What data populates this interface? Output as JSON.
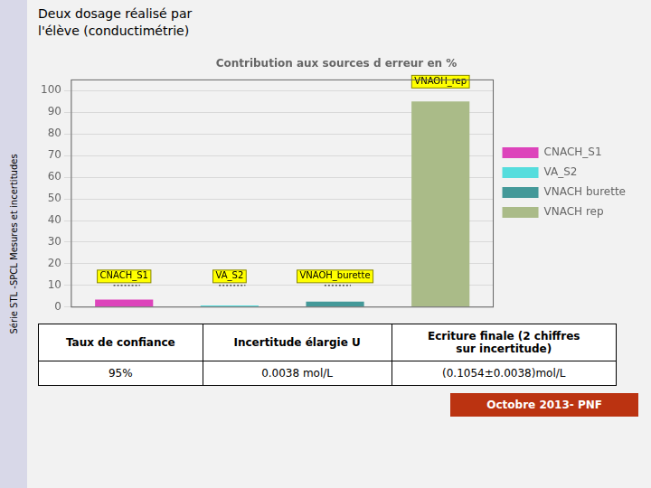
{
  "chart_data": {
    "type": "bar",
    "title": "Contribution aux sources d erreur en %",
    "categories": [
      "CNACH_S1",
      "VA_S2",
      "VNAOH_burette",
      "VNAOH_rep"
    ],
    "series": [
      {
        "name": "CNACH_S1",
        "color": "#dd44bb",
        "values": [
          3.5,
          null,
          null,
          null
        ]
      },
      {
        "name": "VA_S2",
        "color": "#55dddd",
        "values": [
          null,
          0.8,
          null,
          null
        ]
      },
      {
        "name": "VNACH burette",
        "color": "#449999",
        "values": [
          null,
          null,
          2.5,
          null
        ]
      },
      {
        "name": "VNACH rep",
        "color": "#aabb88",
        "values": [
          null,
          null,
          null,
          95.0
        ]
      }
    ],
    "ylim": [
      0,
      105
    ],
    "yticks": [
      0,
      10,
      20,
      30,
      40,
      50,
      60,
      70,
      80,
      90,
      100
    ],
    "grid": true,
    "legend": "right",
    "tick_labels": "y",
    "annotations": [
      {
        "x": "CNACH_S1",
        "y": 10,
        "text": "CNACH_S1",
        "line_style": "dotted"
      },
      {
        "x": "VA_S2",
        "y": 10,
        "text": "VA_S2",
        "line_style": "dotted"
      },
      {
        "x": "VNAOH_burette",
        "y": 10,
        "text": "VNAOH_burette",
        "line_style": "dotted"
      },
      {
        "x": "VNAOH_rep",
        "y": 100,
        "text": "VNAOH_rep"
      }
    ],
    "heading": [
      "Deux dosage réalisé par",
      "l'élève (conductimétrie)"
    ],
    "table": {
      "columns": [
        "Taux de confiance",
        "Incertitude élargie U",
        "Ecriture finale (2 chiffres\nsur incertitude)"
      ],
      "rows": [
        [
          "95%",
          "0.0038 mol/L",
          "(0.1054±0.0038)mol/L"
        ]
      ]
    },
    "footer": "Octobre 2013- PNF",
    "sidebar": "Série STL -SPCL Mesures  et incertitudes"
  }
}
